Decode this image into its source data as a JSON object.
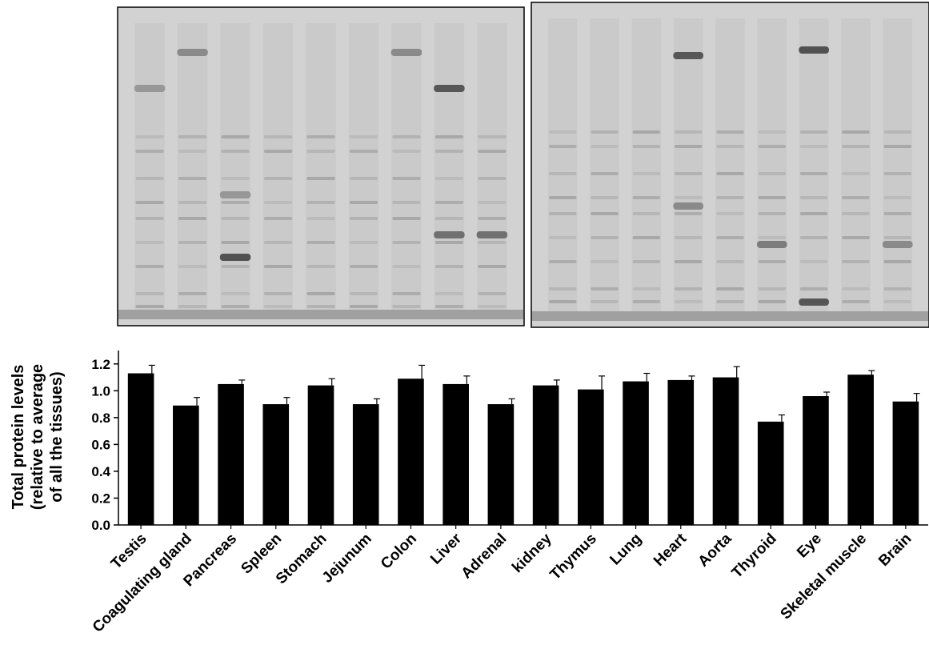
{
  "chart_data": {
    "type": "bar",
    "categories": [
      "Testis",
      "Coagulating gland",
      "Pancreas",
      "Spleen",
      "Stomach",
      "Jejunum",
      "Colon",
      "Liver",
      "Adrenal",
      "kidney",
      "Thymus",
      "Lung",
      "Heart",
      "Aorta",
      "Thyroid",
      "Eye",
      "Skeletal muscle",
      "Brain"
    ],
    "values": [
      1.13,
      0.89,
      1.05,
      0.9,
      1.04,
      0.9,
      1.09,
      1.05,
      0.9,
      1.04,
      1.01,
      1.07,
      1.08,
      1.1,
      0.77,
      0.96,
      1.12,
      0.92
    ],
    "errors": [
      0.06,
      0.06,
      0.03,
      0.05,
      0.05,
      0.04,
      0.1,
      0.06,
      0.04,
      0.04,
      0.1,
      0.06,
      0.03,
      0.08,
      0.05,
      0.03,
      0.03,
      0.06
    ],
    "ylabel_lines": [
      "Total protein levels",
      "(relative to average",
      "of all the tissues)"
    ],
    "ylim": [
      0.0,
      1.3
    ],
    "yticks": [
      "0.0",
      "0.2",
      "0.4",
      "0.6",
      "0.8",
      "1.0",
      "1.2"
    ],
    "bar_color": "#000000",
    "grid": false,
    "legend": "none"
  },
  "gel_image": {
    "panels": 2,
    "background_color": "#d2d2d2",
    "band_color": "#7a7a7a"
  }
}
